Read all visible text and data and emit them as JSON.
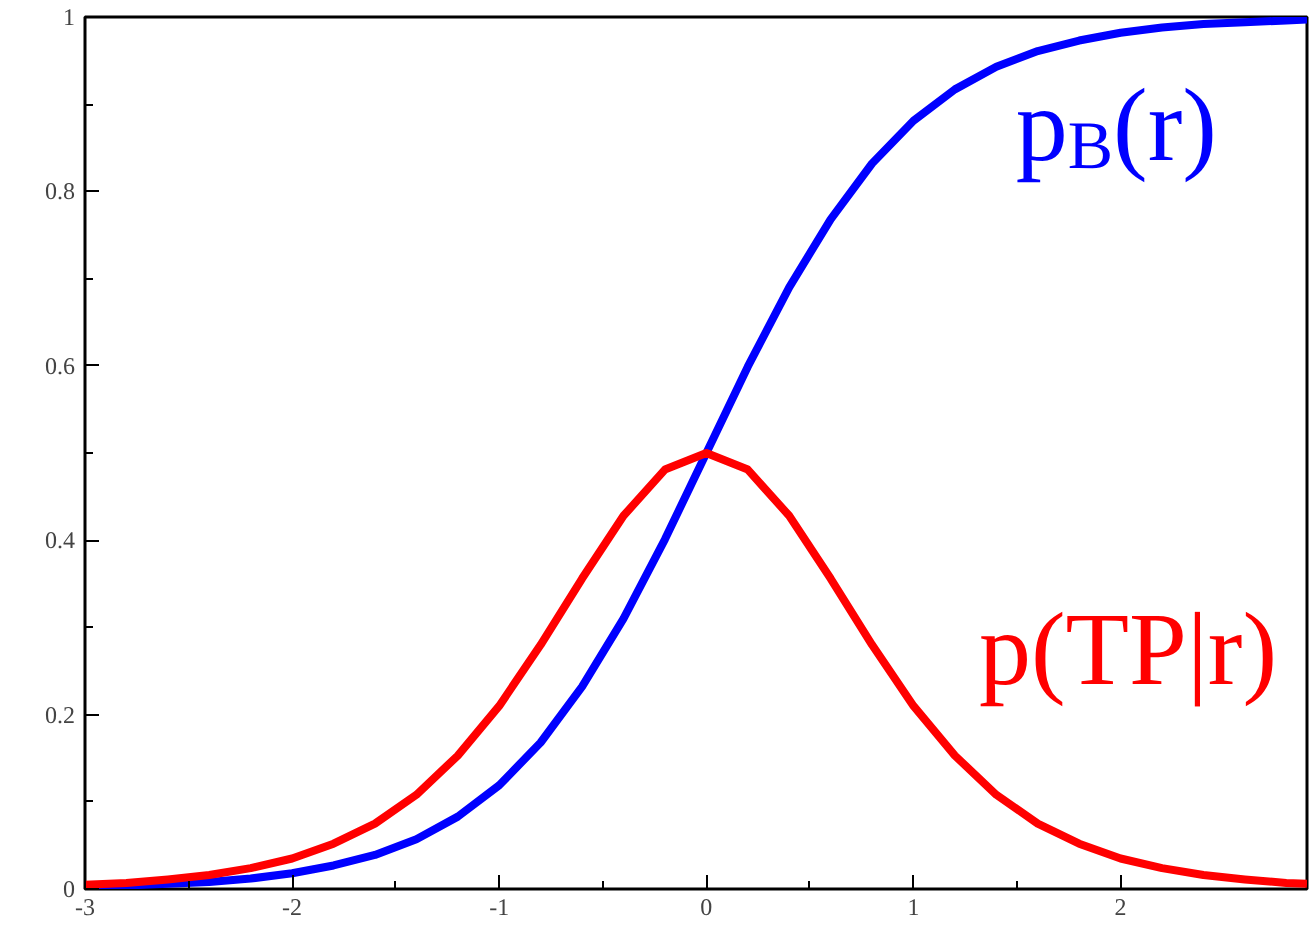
{
  "chart_data": {
    "type": "line",
    "x": [
      -3,
      -2.8,
      -2.6,
      -2.4,
      -2.2,
      -2,
      -1.8,
      -1.6,
      -1.4,
      -1.2,
      -1,
      -0.8,
      -0.6,
      -0.4,
      -0.2,
      0,
      0.2,
      0.4,
      0.6,
      0.8,
      1,
      1.2,
      1.4,
      1.6,
      1.8,
      2,
      2.2,
      2.4,
      2.6,
      2.8,
      2.9
    ],
    "series": [
      {
        "name": "p$_{B}$(r)",
        "color": "#0000ff",
        "values": [
          0.002,
          0.004,
          0.006,
          0.008,
          0.012,
          0.018,
          0.027,
          0.039,
          0.057,
          0.083,
          0.119,
          0.168,
          0.232,
          0.31,
          0.401,
          0.5,
          0.599,
          0.69,
          0.768,
          0.832,
          0.881,
          0.917,
          0.943,
          0.961,
          0.973,
          0.982,
          0.988,
          0.992,
          0.994,
          0.996,
          0.997
        ]
      },
      {
        "name": "p(TP|r)",
        "color": "#ff0000",
        "values": [
          0.005,
          0.007,
          0.011,
          0.016,
          0.024,
          0.035,
          0.052,
          0.075,
          0.108,
          0.153,
          0.21,
          0.28,
          0.356,
          0.428,
          0.481,
          0.5,
          0.481,
          0.428,
          0.356,
          0.28,
          0.21,
          0.153,
          0.108,
          0.075,
          0.052,
          0.035,
          0.024,
          0.016,
          0.011,
          0.007,
          0.006
        ]
      }
    ],
    "xlim": [
      -3,
      2.9
    ],
    "ylim": [
      0,
      1
    ],
    "xticks": [
      -3,
      -2,
      -1,
      0,
      1,
      2
    ],
    "yticks": [
      0,
      0.2,
      0.4,
      0.6,
      0.8,
      1
    ],
    "grid": false,
    "marker": "none",
    "line_style": "solid"
  }
}
